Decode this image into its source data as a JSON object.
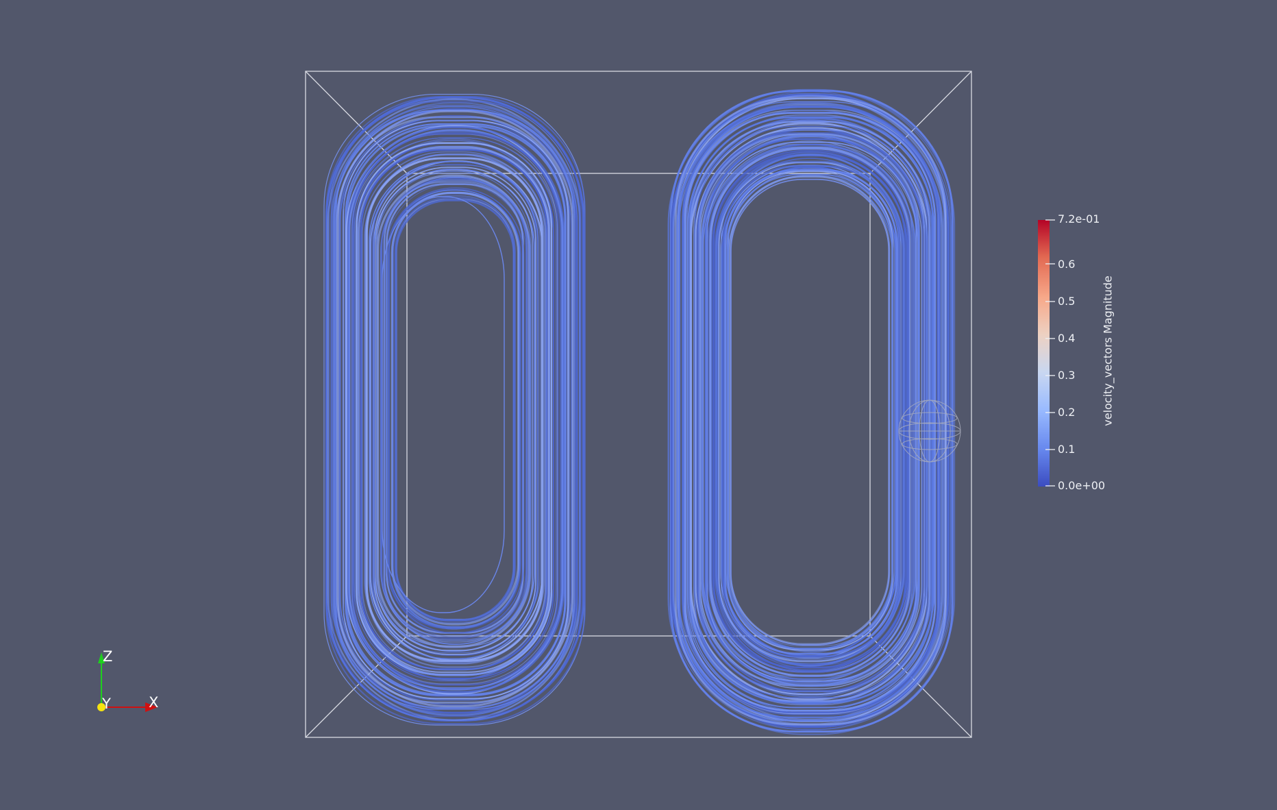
{
  "colorbar": {
    "title": "velocity_vectors Magnitude",
    "max_label": "7.2e-01",
    "min_label": "0.0e+00",
    "tick_labels": [
      "0.6",
      "0.5",
      "0.4",
      "0.3",
      "0.2",
      "0.1"
    ],
    "range": [
      0.0,
      0.72
    ],
    "colormap": [
      "#3b4cc0",
      "#6788ee",
      "#9abbff",
      "#c9d7f0",
      "#edd1c2",
      "#f7a889",
      "#e26952",
      "#b40426"
    ]
  },
  "orientation_axes": {
    "x_label": "X",
    "y_label": "Y",
    "z_label": "Z",
    "x_color": "#d01010",
    "y_color": "#f5e311",
    "z_color": "#1ecf1e"
  },
  "scene": {
    "background": "#52576b",
    "streamline_color": "#5a78e2",
    "outline_color": "#e8eaf0"
  }
}
